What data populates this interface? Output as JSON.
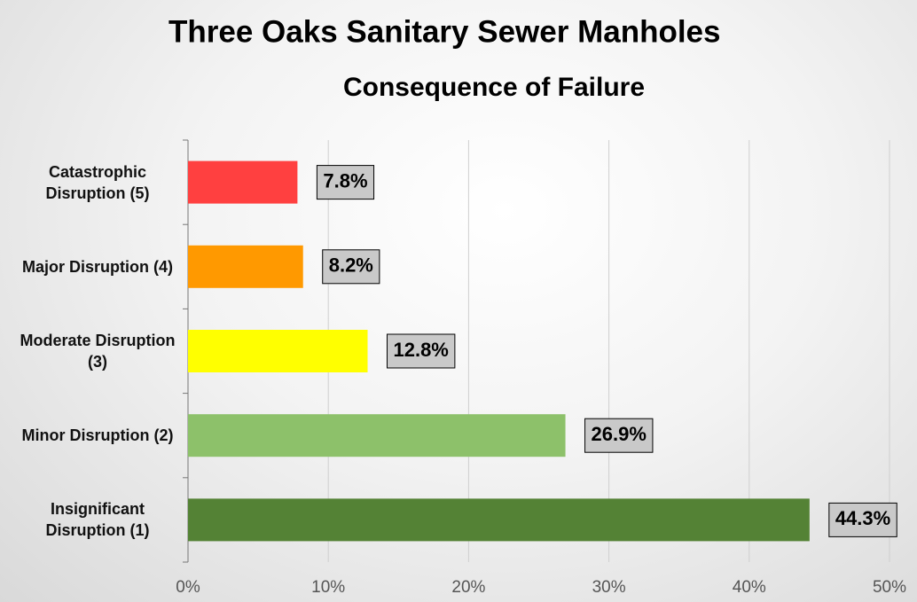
{
  "chart_data": {
    "type": "hbar",
    "title": "Three Oaks Sanitary Sewer Manholes",
    "subtitle": "Consequence of Failure",
    "categories": [
      "Catastrophic Disruption (5)",
      "Major Disruption (4)",
      "Moderate Disruption (3)",
      "Minor Disruption (2)",
      "Insignificant Disruption (1)"
    ],
    "values": [
      7.8,
      8.2,
      12.8,
      26.9,
      44.3
    ],
    "value_labels": [
      "7.8%",
      "8.2%",
      "12.8%",
      "26.9%",
      "44.3%"
    ],
    "colors": [
      "#ff4040",
      "#ff9900",
      "#ffff00",
      "#8dc16a",
      "#548235"
    ],
    "xlim": [
      0,
      50
    ],
    "xticks": [
      {
        "value": 0,
        "label": "0%"
      },
      {
        "value": 10,
        "label": "10%"
      },
      {
        "value": 20,
        "label": "20%"
      },
      {
        "value": 30,
        "label": "30%"
      },
      {
        "value": 40,
        "label": "40%"
      },
      {
        "value": 50,
        "label": "50%"
      }
    ],
    "grid": true
  }
}
